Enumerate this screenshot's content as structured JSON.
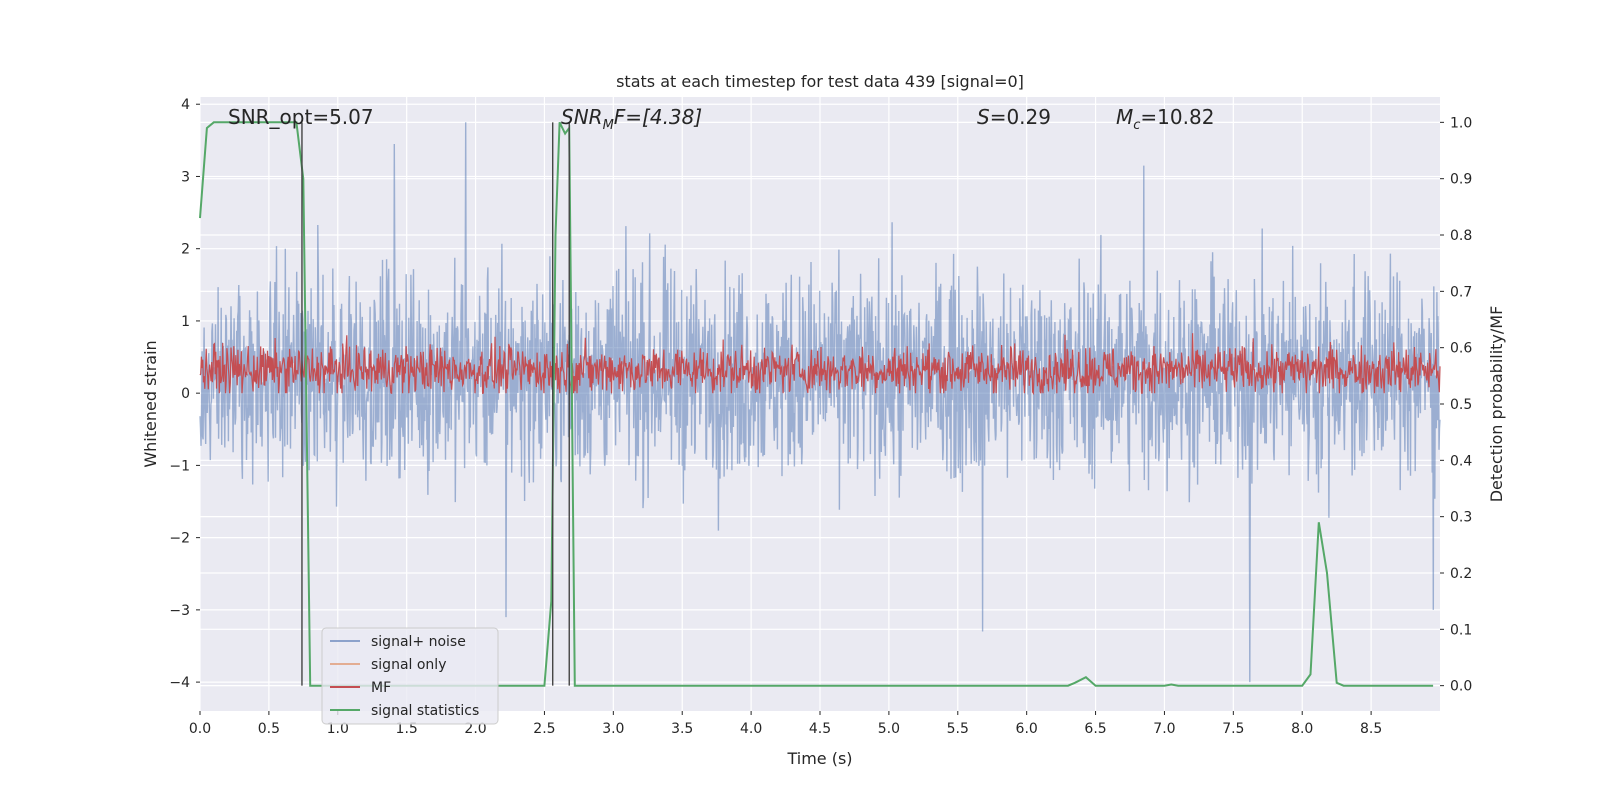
{
  "chart_data": {
    "type": "line",
    "title": "stats at each timestep for test data 439 [signal=0]",
    "xlabel": "Time (s)",
    "ylabel": "Whitened strain",
    "y2label": "Detection probability/MF",
    "xlim": [
      0.0,
      9.0
    ],
    "ylim": [
      -4.4,
      4.1
    ],
    "y2lim": [
      -0.045,
      1.045
    ],
    "xticks": [
      0.0,
      0.5,
      1.0,
      1.5,
      2.0,
      2.5,
      3.0,
      3.5,
      4.0,
      4.5,
      5.0,
      5.5,
      6.0,
      6.5,
      7.0,
      7.5,
      8.0,
      8.5
    ],
    "xtick_labels": [
      "0.0",
      "0.5",
      "1.0",
      "1.5",
      "2.0",
      "2.5",
      "3.0",
      "3.5",
      "4.0",
      "4.5",
      "5.0",
      "5.5",
      "6.0",
      "6.5",
      "7.0",
      "7.5",
      "8.0",
      "8.5"
    ],
    "yticks": [
      -4,
      -3,
      -2,
      -1,
      0,
      1,
      2,
      3,
      4
    ],
    "ytick_labels": [
      "−4",
      "−3",
      "−2",
      "−1",
      "0",
      "1",
      "2",
      "3",
      "4"
    ],
    "y2ticks": [
      0.0,
      0.1,
      0.2,
      0.3,
      0.4,
      0.5,
      0.6,
      0.7,
      0.8,
      0.9,
      1.0
    ],
    "y2tick_labels": [
      "0.0",
      "0.1",
      "0.2",
      "0.3",
      "0.4",
      "0.5",
      "0.6",
      "0.7",
      "0.8",
      "0.9",
      "1.0"
    ],
    "grid": true,
    "legend_position": "lower-left",
    "annotations": {
      "snr_opt": "SNR_opt=5.07",
      "snr_mf_sym": "SNR",
      "snr_mf_sub": "M",
      "snr_mf_rest": "F=[4.38]",
      "s_sym": "S",
      "s_rest": "=0.29",
      "mc_sym": "M",
      "mc_sub": "c",
      "mc_rest": "=10.82"
    },
    "vertical_lines_x": [
      0.74,
      2.56,
      2.68
    ],
    "noise_series": {
      "name": "signal+ noise",
      "color": "#4c72b0",
      "approx_envelope": [
        -2.5,
        3.0
      ],
      "spikes": [
        {
          "x": 1.93,
          "y": 3.75
        },
        {
          "x": 1.41,
          "y": 3.45
        },
        {
          "x": 6.85,
          "y": 3.15
        },
        {
          "x": 7.62,
          "y": -4.0
        },
        {
          "x": 5.68,
          "y": -3.3
        },
        {
          "x": 8.95,
          "y": -3.0
        },
        {
          "x": 2.22,
          "y": -3.1
        }
      ]
    },
    "mf_series": {
      "name": "MF",
      "color": "#c44e52",
      "approx_range": [
        0.0,
        0.85
      ]
    },
    "signal_only_series": {
      "name": "signal only",
      "color": "#dd8452"
    },
    "stat_series": {
      "name": "signal statistics",
      "color": "#55a868",
      "x": [
        0.0,
        0.05,
        0.1,
        0.2,
        0.3,
        0.4,
        0.5,
        0.6,
        0.7,
        0.75,
        0.8,
        0.9,
        1.0,
        1.5,
        2.0,
        2.4,
        2.5,
        2.55,
        2.58,
        2.61,
        2.65,
        2.68,
        2.72,
        2.8,
        3.5,
        4.5,
        5.5,
        6.3,
        6.35,
        6.43,
        6.5,
        6.55,
        7.0,
        7.05,
        7.1,
        7.5,
        8.0,
        8.06,
        8.12,
        8.18,
        8.25,
        8.3,
        8.4,
        8.95
      ],
      "y": [
        0.83,
        0.99,
        1.0,
        1.0,
        1.0,
        1.0,
        1.0,
        1.0,
        1.0,
        0.9,
        0.0,
        0.0,
        0.0,
        0.0,
        0.0,
        0.0,
        0.0,
        0.15,
        0.8,
        1.0,
        0.98,
        0.99,
        0.0,
        0.0,
        0.0,
        0.0,
        0.0,
        0.0,
        0.005,
        0.015,
        0.0,
        0.0,
        0.0,
        0.002,
        0.0,
        0.0,
        0.0,
        0.02,
        0.29,
        0.2,
        0.005,
        0.0,
        0.0,
        0.0
      ]
    }
  }
}
